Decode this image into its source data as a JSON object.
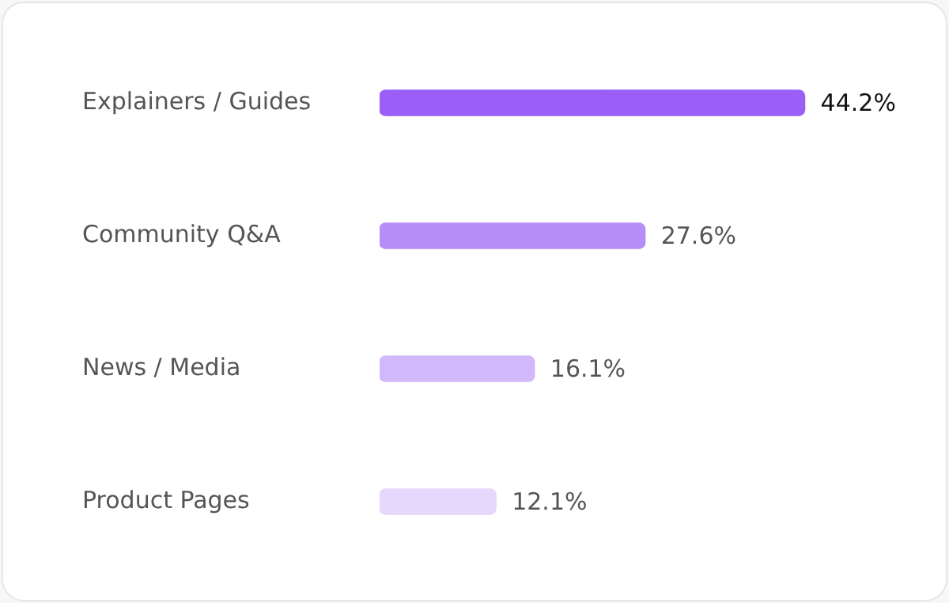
{
  "chart_data": {
    "type": "bar",
    "orientation": "horizontal",
    "categories": [
      "Explainers / Guides",
      "Community Q&A",
      "News / Media",
      "Product Pages"
    ],
    "values": [
      44.2,
      27.6,
      16.1,
      12.1
    ],
    "colors": [
      "#9b5ff7",
      "#b78ef7",
      "#d1b8fa",
      "#e5d8fc"
    ],
    "value_labels": [
      "44.2%",
      "27.6%",
      "16.1%",
      "12.1%"
    ],
    "grid": false,
    "legend": false
  }
}
